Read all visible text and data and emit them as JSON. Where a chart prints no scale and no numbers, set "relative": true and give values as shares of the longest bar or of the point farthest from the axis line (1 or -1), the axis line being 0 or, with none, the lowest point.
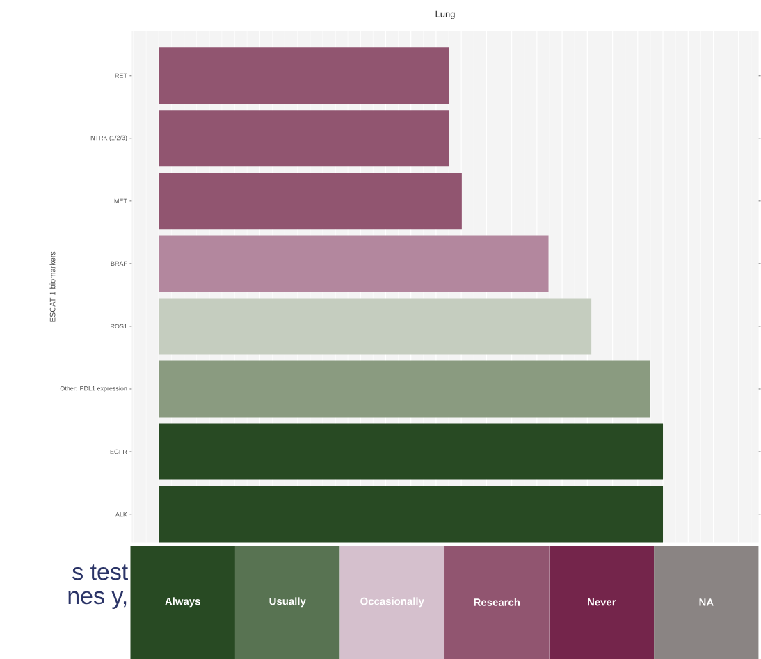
{
  "chart_data": [
    {
      "type": "bar",
      "orientation": "horizontal",
      "relative": true,
      "title": "Lung",
      "ylabel": "ESCAT 1 biomarkers",
      "categories": [
        "RET",
        "NTRK (1/2/3)",
        "MET",
        "BRAF",
        "ROS1",
        "Other: PDL1 expression",
        "EGFR",
        "ALK"
      ],
      "values": [
        0.575,
        0.575,
        0.601,
        0.773,
        0.858,
        0.974,
        1,
        1
      ],
      "colors": [
        "#915570",
        "#915570",
        "#915570",
        "#b3879e",
        "#c5cdbf",
        "#8a9b80",
        "#284a23",
        "#284a23"
      ],
      "grid": "x",
      "annotations": [
        "s test",
        "nes y,"
      ]
    },
    {
      "type": "other",
      "categories": [
        "Always",
        "Usually",
        "Occasionally",
        "Research",
        "Never",
        "NA"
      ],
      "colors": [
        "#284a23",
        "#587352",
        "#d5c0cd",
        "#915570",
        "#74254b",
        "#8a8483"
      ]
    }
  ]
}
